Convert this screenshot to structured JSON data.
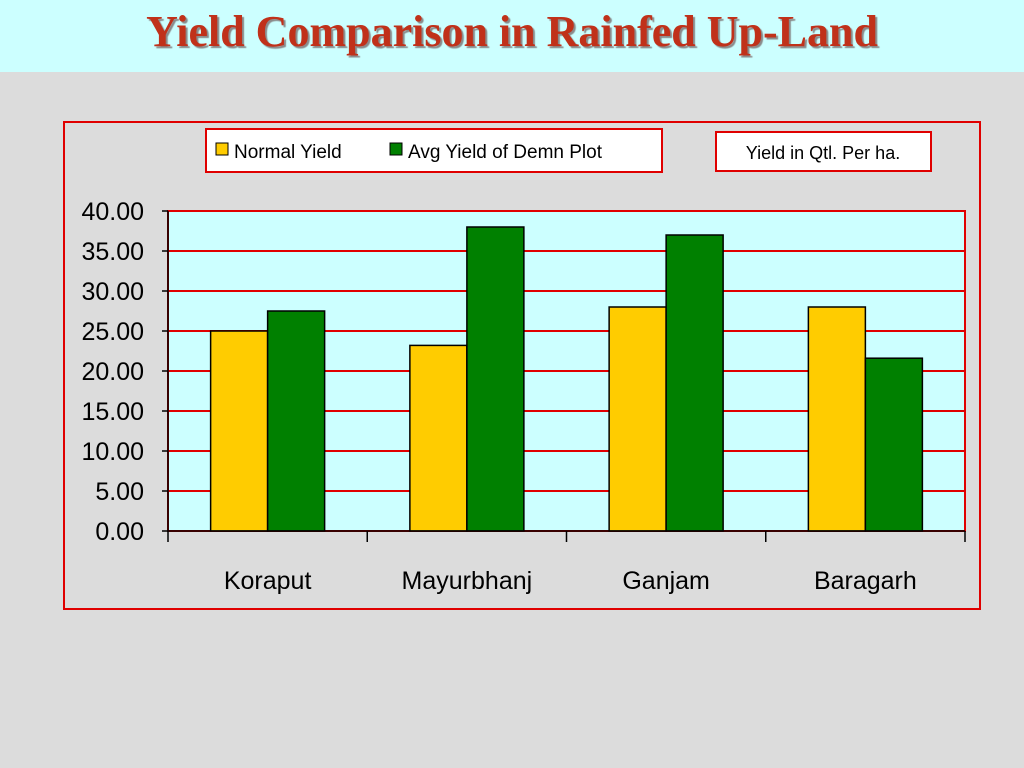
{
  "slide": {
    "title": "Yield Comparison in Rainfed Up-Land"
  },
  "chart_data": {
    "type": "bar",
    "categories": [
      "Koraput",
      "Mayurbhanj",
      "Ganjam",
      "Baragarh"
    ],
    "series": [
      {
        "name": "Normal Yield",
        "color": "#ffcc00",
        "values": [
          25.0,
          23.2,
          28.0,
          28.0
        ]
      },
      {
        "name": "Avg Yield of Demn Plot",
        "color": "#008000",
        "values": [
          27.5,
          38.0,
          37.0,
          21.6
        ]
      }
    ],
    "ylim": [
      0,
      40
    ],
    "ytick_step": 5,
    "ytick_labels": [
      "0.00",
      "5.00",
      "10.00",
      "15.00",
      "20.00",
      "25.00",
      "30.00",
      "35.00",
      "40.00"
    ],
    "unit_note": "Yield in Qtl. Per ha.",
    "legend_position": "top",
    "grid": true,
    "colors": {
      "plot_background": "#ccffff",
      "grid_line": "#e00000",
      "frame_border": "#e00000"
    }
  }
}
